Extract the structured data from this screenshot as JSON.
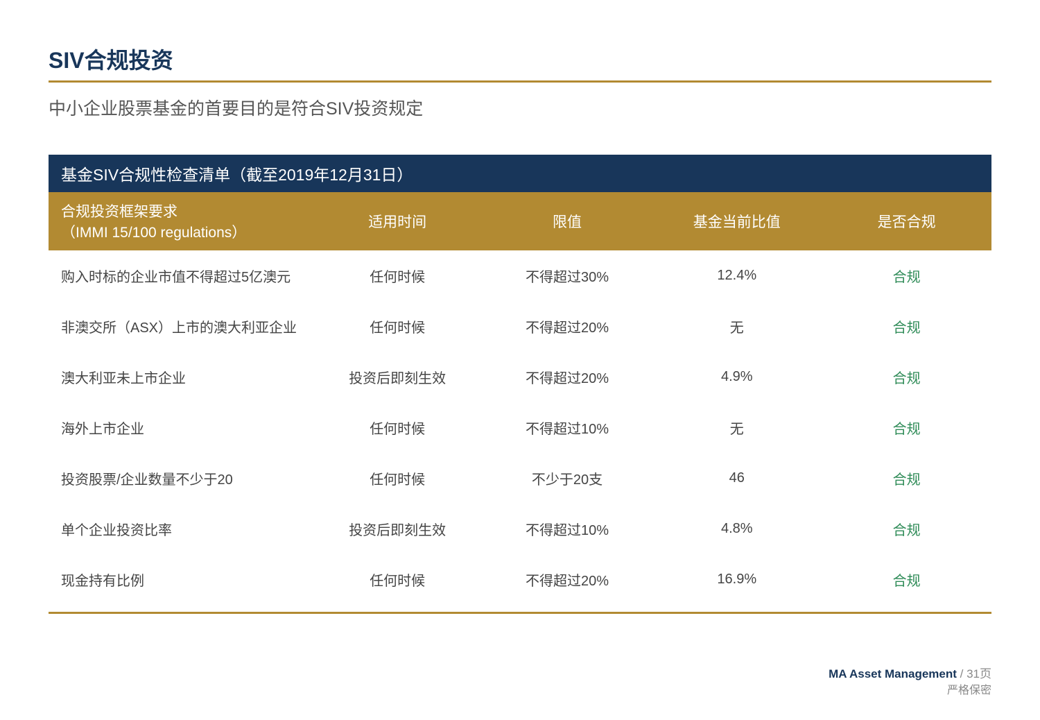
{
  "colors": {
    "title": "#18365a",
    "title_underline": "#b28a32",
    "subtitle": "#555555",
    "banner_bg": "#18365a",
    "banner_text": "#ffffff",
    "th_bg": "#b28a32",
    "th_text": "#ffffff",
    "body_text": "#444444",
    "status_ok": "#2e8b57",
    "bottom_rule": "#b28a32",
    "footer_brand": "#18365a",
    "footer_muted": "#888888"
  },
  "title": "SIV合规投资",
  "subtitle": "中小企业股票基金的首要目的是符合SIV投资规定",
  "banner": "基金SIV合规性检查清单（截至2019年12月31日）",
  "table": {
    "columns": [
      "合规投资框架要求\n（IMMI 15/100 regulations）",
      "适用时间",
      "限值",
      "基金当前比值",
      "是否合规"
    ],
    "rows": [
      {
        "req": "购入时标的企业市值不得超过5亿澳元",
        "time": "任何时候",
        "limit": "不得超过30%",
        "current": "12.4%",
        "status": "合规"
      },
      {
        "req": "非澳交所（ASX）上市的澳大利亚企业",
        "time": "任何时候",
        "limit": "不得超过20%",
        "current": "无",
        "status": "合规"
      },
      {
        "req": "澳大利亚未上市企业",
        "time": "投资后即刻生效",
        "limit": "不得超过20%",
        "current": "4.9%",
        "status": "合规"
      },
      {
        "req": "海外上市企业",
        "time": "任何时候",
        "limit": "不得超过10%",
        "current": "无",
        "status": "合规"
      },
      {
        "req": "投资股票/企业数量不少于20",
        "time": "任何时候",
        "limit": "不少于20支",
        "current": "46",
        "status": "合规"
      },
      {
        "req": "单个企业投资比率",
        "time": "投资后即刻生效",
        "limit": "不得超过10%",
        "current": "4.8%",
        "status": "合规"
      },
      {
        "req": "现金持有比例",
        "time": "任何时候",
        "limit": "不得超过20%",
        "current": "16.9%",
        "status": "合规"
      }
    ]
  },
  "footer": {
    "brand": "MA Asset Management",
    "sep": " / ",
    "page": "31页",
    "confidential": "严格保密"
  }
}
